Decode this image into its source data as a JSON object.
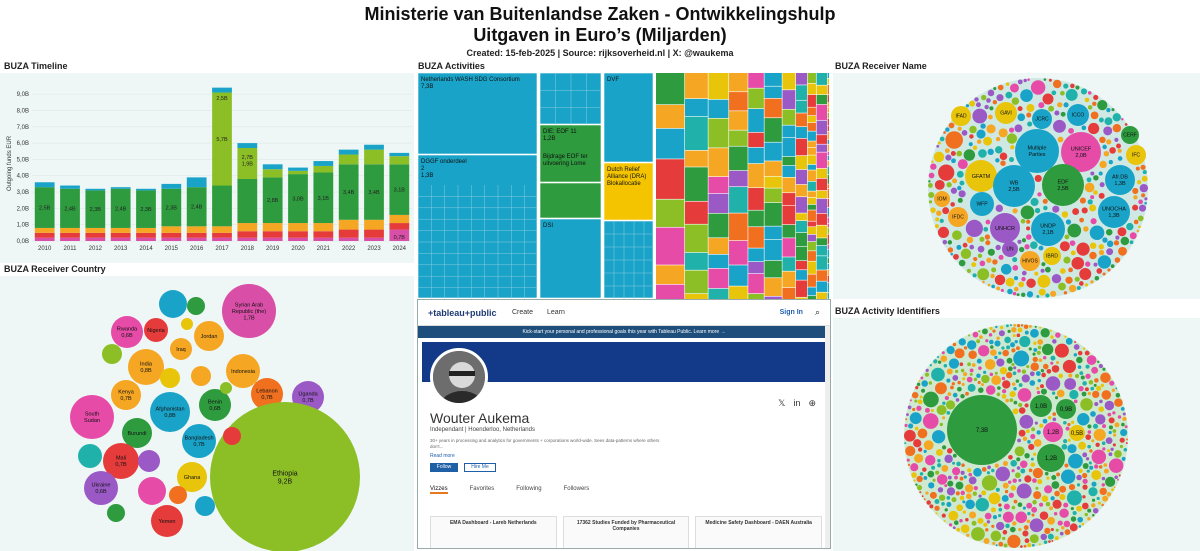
{
  "header": {
    "title_line1": "Ministerie van Buitenlandse Zaken  - Ontwikkelingshulp",
    "title_line2": "Uitgaven in Euro’s (Miljarden)",
    "subtitle": "Created: 15-feb-2025 | Source: rijksoverheid.nl | X: @waukema"
  },
  "panels": {
    "timeline": "BUZA Timeline",
    "activities": "BUZA Activities",
    "receiver_name": "BUZA Receiver Name",
    "receiver_country": "BUZA Receiver Country",
    "activity_identifiers": "BUZA Activity Identifiers"
  },
  "chart_data": [
    {
      "type": "bar",
      "title": "BUZA Timeline",
      "ylabel": "Outgoing funds EUR",
      "ylim": [
        0,
        9.5
      ],
      "yticks": [
        "0,0B",
        "1,0B",
        "2,0B",
        "3,0B",
        "4,0B",
        "5,0B",
        "6,0B",
        "7,0B",
        "8,0B",
        "9,0B"
      ],
      "categories": [
        "2010",
        "2011",
        "2012",
        "2013",
        "2014",
        "2015",
        "2016",
        "2017",
        "2018",
        "2019",
        "2020",
        "2021",
        "2022",
        "2023",
        "2024"
      ],
      "totals": [
        3.6,
        3.4,
        3.2,
        3.3,
        3.2,
        3.5,
        3.9,
        9.4,
        6.0,
        4.7,
        4.5,
        4.9,
        5.6,
        5.9,
        5.4
      ],
      "series": [
        {
          "name": "",
          "color": "#d94fa8",
          "values": [
            0.2,
            0.2,
            0.2,
            0.2,
            0.2,
            0.2,
            0.2,
            0.2,
            0.2,
            0.2,
            0.2,
            0.2,
            0.2,
            0.2,
            0.7
          ]
        },
        {
          "name": "",
          "color": "#e53b3b",
          "values": [
            0.3,
            0.3,
            0.3,
            0.3,
            0.3,
            0.3,
            0.3,
            0.3,
            0.4,
            0.4,
            0.4,
            0.4,
            0.5,
            0.5,
            0.4
          ]
        },
        {
          "name": "",
          "color": "#f5a623",
          "values": [
            0.3,
            0.3,
            0.3,
            0.3,
            0.3,
            0.4,
            0.4,
            0.4,
            0.5,
            0.5,
            0.5,
            0.5,
            0.6,
            0.6,
            0.5
          ]
        },
        {
          "name": "",
          "color": "#2e9b3e",
          "values": [
            2.5,
            2.4,
            2.3,
            2.4,
            2.3,
            2.3,
            2.4,
            2.5,
            2.7,
            2.8,
            3.0,
            3.1,
            3.4,
            3.4,
            3.1
          ]
        },
        {
          "name": "",
          "color": "#8cbf26",
          "values": [
            0,
            0,
            0,
            0,
            0,
            0,
            0,
            5.7,
            1.9,
            0.5,
            0.2,
            0.4,
            0.6,
            0.9,
            0.5
          ]
        },
        {
          "name": "",
          "color": "#1aa3c8",
          "values": [
            0.3,
            0.2,
            0.1,
            0.1,
            0.1,
            0.3,
            0.6,
            0.3,
            0.3,
            0.3,
            0.2,
            0.3,
            0.3,
            0.3,
            0.2
          ]
        }
      ],
      "data_labels": [
        {
          "year": "2010",
          "text": "2,5B"
        },
        {
          "year": "2011",
          "text": "2,4B"
        },
        {
          "year": "2012",
          "text": "2,3B"
        },
        {
          "year": "2013",
          "text": "2,4B"
        },
        {
          "year": "2014",
          "text": "2,3B"
        },
        {
          "year": "2015",
          "text": "2,3B"
        },
        {
          "year": "2016",
          "text": "2,4B"
        },
        {
          "year": "2017",
          "text": "2,5B"
        },
        {
          "year": "2017",
          "text": "5,7B"
        },
        {
          "year": "2018",
          "text": "2,7B"
        },
        {
          "year": "2018",
          "text": "1,9B"
        },
        {
          "year": "2019",
          "text": "2,8B"
        },
        {
          "year": "2020",
          "text": "3,0B"
        },
        {
          "year": "2021",
          "text": "3,1B"
        },
        {
          "year": "2022",
          "text": "3,4B"
        },
        {
          "year": "2023",
          "text": "3,4B"
        },
        {
          "year": "2024",
          "text": "3,1B"
        },
        {
          "year": "2024",
          "text": "0,7B"
        }
      ]
    },
    {
      "type": "treemap",
      "title": "BUZA Activities",
      "labeled": [
        {
          "lines": [
            "Netherlands WASH SDG Consortium",
            "7,3B"
          ],
          "color": "#1aa3c8"
        },
        {
          "lines": [
            "DGGF onderdeel",
            "2",
            "1,3B"
          ],
          "color": "#1aa3c8"
        },
        {
          "lines": [
            "DIE: EOF 11",
            "1,2B"
          ],
          "color": "#2e9b3e"
        },
        {
          "lines": [
            "Bijdrage EOF ter",
            "uitvoering Lome"
          ],
          "color": "#2e9b3e"
        },
        {
          "lines": [
            "DVF"
          ],
          "color": "#1aa3c8"
        },
        {
          "lines": [
            "Dutch Relief",
            "Alliance (DRA)",
            "Blokallocatie"
          ],
          "color": "#f5c400"
        },
        {
          "lines": [
            "DSI"
          ],
          "color": "#1aa3c8"
        }
      ]
    },
    {
      "type": "bubble",
      "title": "BUZA Receiver Name",
      "labeled": [
        {
          "label": "IFAD",
          "color": "#e8c40a"
        },
        {
          "label": "GAVI",
          "color": "#e8c40a"
        },
        {
          "label": "JCRC",
          "color": "#1aa3c8"
        },
        {
          "label": "ICCO",
          "color": "#1aa3c8"
        },
        {
          "label": "Multiple Parties",
          "color": "#1aa3c8"
        },
        {
          "label": "UNICEF 2,0B",
          "color": "#e54ba7"
        },
        {
          "label": "CERF",
          "color": "#2e9b3e"
        },
        {
          "label": "IFC",
          "color": "#e8c40a"
        },
        {
          "label": "GFATM",
          "color": "#e8c40a"
        },
        {
          "label": "WB 2,5B",
          "color": "#1aa3c8"
        },
        {
          "label": "EDF 2,5B",
          "color": "#2e9b3e"
        },
        {
          "label": "Afr.DB 1,3B",
          "color": "#1aa3c8"
        },
        {
          "label": "IOM",
          "color": "#f5a623"
        },
        {
          "label": "WFP",
          "color": "#1aa3c8"
        },
        {
          "label": "UNOCHA 1,3B",
          "color": "#1aa3c8"
        },
        {
          "label": "IFDC",
          "color": "#f5a623"
        },
        {
          "label": "UNHCR",
          "color": "#9b59c6"
        },
        {
          "label": "UNDP 2,1B",
          "color": "#1aa3c8"
        },
        {
          "label": "UN",
          "color": "#9b59c6"
        },
        {
          "label": "HIVOS",
          "color": "#f5a623"
        },
        {
          "label": "IBRD",
          "color": "#e8c40a"
        }
      ]
    },
    {
      "type": "bubble",
      "title": "BUZA Receiver Country",
      "labeled": [
        {
          "label": "Syrian Arab Republic (the) 1,7B",
          "color": "#d94fa8"
        },
        {
          "label": "Rwanda 0,6B",
          "color": "#e54ba7"
        },
        {
          "label": "Nigeria",
          "color": "#e53b3b"
        },
        {
          "label": "Jordan",
          "color": "#f5a623"
        },
        {
          "label": "India 0,8B",
          "color": "#f5a623"
        },
        {
          "label": "Iraq",
          "color": "#f5a623"
        },
        {
          "label": "Indonesia",
          "color": "#f5a623"
        },
        {
          "label": "Lebanon 0,7B",
          "color": "#f07020"
        },
        {
          "label": "Uganda 0,7B",
          "color": "#9b59c6"
        },
        {
          "label": "Kenya 0,7B",
          "color": "#f5a623"
        },
        {
          "label": "Benin 0,6B",
          "color": "#2e9b3e"
        },
        {
          "label": "South Sudan",
          "color": "#e54ba7"
        },
        {
          "label": "Afghanistan 0,8B",
          "color": "#1aa3c8"
        },
        {
          "label": "Burundi",
          "color": "#2e9b3e"
        },
        {
          "label": "Bangladesh 0,7B",
          "color": "#1aa3c8"
        },
        {
          "label": "Mali 0,7B",
          "color": "#e53b3b"
        },
        {
          "label": "Ghana",
          "color": "#e8c40a"
        },
        {
          "label": "Ethiopia 9,2B",
          "color": "#8cbf26"
        },
        {
          "label": "Ukraine 0,6B",
          "color": "#9b59c6"
        },
        {
          "label": "Yemen",
          "color": "#e53b3b"
        }
      ]
    },
    {
      "type": "bubble",
      "title": "BUZA Activity Identifiers",
      "labeled": [
        {
          "label": "7,3B",
          "color": "#2e9b3e"
        },
        {
          "label": "1,0B",
          "color": "#2e9b3e"
        },
        {
          "label": "0,9B",
          "color": "#2e9b3e"
        },
        {
          "label": "1,2B",
          "color": "#e54ba7"
        },
        {
          "label": "0,5B",
          "color": "#e8c40a"
        },
        {
          "label": "1,2B",
          "color": "#2e9b3e"
        }
      ]
    }
  ],
  "tableau": {
    "logo": "+tableau+public",
    "create": "Create",
    "learn": "Learn",
    "signin": "Sign In",
    "banner": "Kick-start your personal and professional goals this year with Tableau Public. Learn more →",
    "name": "Wouter Aukema",
    "sub": "Independant | Hoenderloo, Netherlands",
    "bio": "30+ years in processing and analytics for governments + corporations world-wide. Sees data-patterns where others don't...",
    "readmore": "Read more",
    "follow": "Follow",
    "hire": "Hire Me",
    "tabs": [
      "Vizzes",
      "Favorites",
      "Following",
      "Followers"
    ],
    "cards": [
      "EMA Dashboard - Lareb Netherlands",
      "17362 Studies Funded by Pharmaceutical Companies",
      "Medicine Safety Dashboard - DAEN Australia"
    ]
  }
}
